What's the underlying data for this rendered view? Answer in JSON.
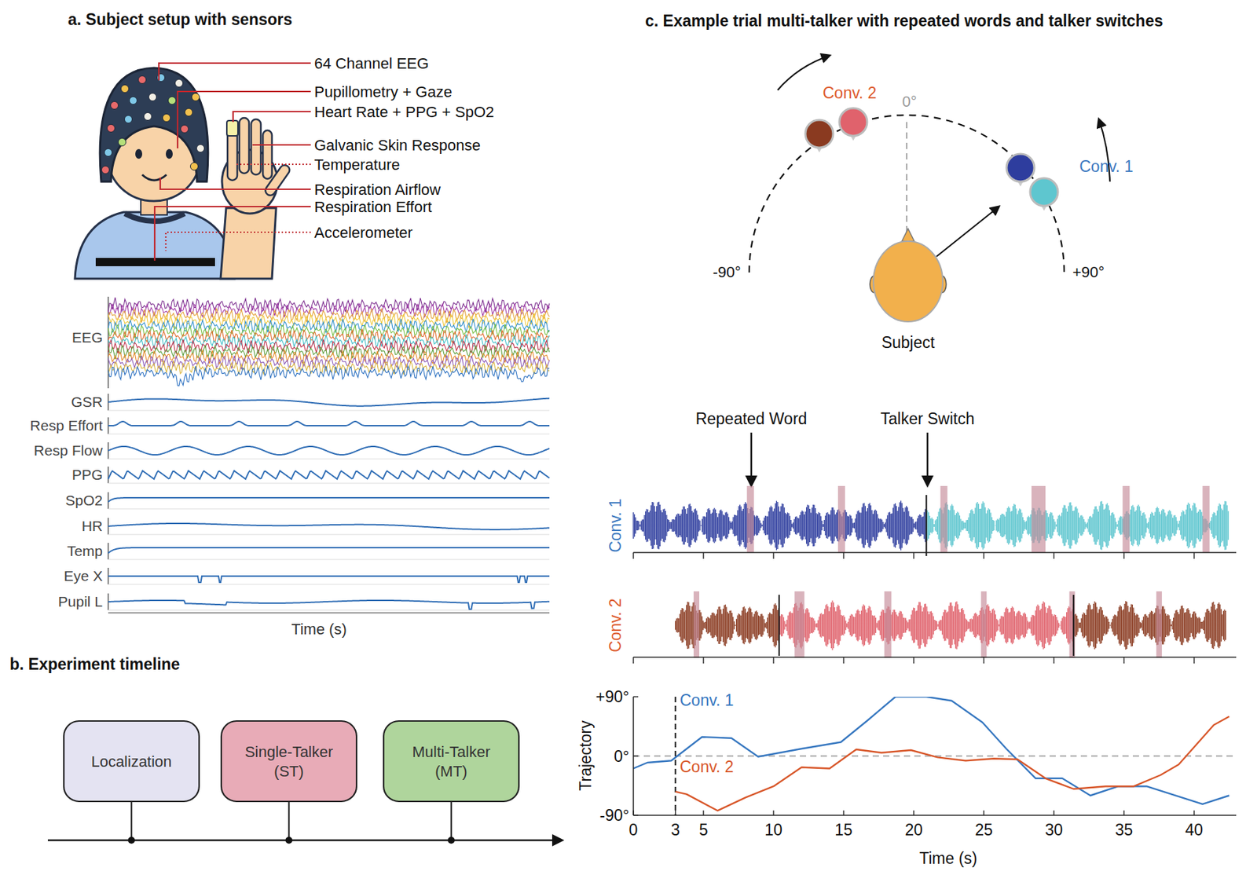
{
  "panel_a": {
    "title": "a. Subject setup with sensors",
    "sensors": [
      {
        "label": "64 Channel EEG",
        "line_style": "solid"
      },
      {
        "label": "Pupillometry + Gaze",
        "line_style": "solid"
      },
      {
        "label": "Heart Rate + PPG + SpO2",
        "line_style": "solid"
      },
      {
        "label": "Galvanic Skin Response",
        "line_style": "solid"
      },
      {
        "label": "Temperature",
        "line_style": "dotted"
      },
      {
        "label": "Respiration Airflow",
        "line_style": "solid"
      },
      {
        "label": "Respiration Effort",
        "line_style": "solid"
      },
      {
        "label": "Accelerometer",
        "line_style": "dotted"
      }
    ],
    "signals": [
      "EEG",
      "GSR",
      "Resp Effort",
      "Resp Flow",
      "PPG",
      "SpO2",
      "HR",
      "Temp",
      "Eye X",
      "Pupil L"
    ],
    "x_label": "Time (s)"
  },
  "panel_b": {
    "title": "b. Experiment timeline",
    "stages": [
      {
        "lines": [
          "Localization"
        ],
        "color": "#e4e3f2"
      },
      {
        "lines": [
          "Single-Talker",
          "(ST)"
        ],
        "color": "#e8abb7"
      },
      {
        "lines": [
          "Multi-Talker",
          "(MT)"
        ],
        "color": "#afd59c"
      }
    ]
  },
  "panel_c": {
    "title": "c. Example trial multi-talker with repeated words and talker switches",
    "scene": {
      "front_label": "0°",
      "left_label": "-90°",
      "right_label": "+90°",
      "subject_label": "Subject",
      "conversations": [
        {
          "name": "Conv. 1",
          "color": "#3b78c0",
          "talker_colors": [
            "#2e3d9e",
            "#5ec6cf"
          ]
        },
        {
          "name": "Conv. 2",
          "color": "#dd5a2c",
          "talker_colors": [
            "#8a3a20",
            "#e0626c"
          ]
        }
      ]
    },
    "annotations": {
      "repeated_word": "Repeated Word",
      "talker_switch": "Talker Switch"
    },
    "time_ticks": [
      0,
      5,
      10,
      15,
      20,
      25,
      30,
      35,
      40
    ],
    "audio": [
      {
        "name": "Conv. 1",
        "color": "#3b78c0",
        "segments": [
          {
            "start": 0,
            "end": 20.9,
            "color": "#2e3d9e"
          },
          {
            "start": 20.9,
            "end": 42.5,
            "color": "#5ec6cf"
          }
        ],
        "switches": [
          20.9
        ],
        "repeated_words": [
          [
            8.1,
            8.6
          ],
          [
            14.6,
            15.1
          ],
          [
            21.9,
            22.4
          ],
          [
            28.4,
            29.4
          ],
          [
            34.9,
            35.4
          ],
          [
            40.6,
            41.1
          ]
        ]
      },
      {
        "name": "Conv. 2",
        "color": "#dd5a2c",
        "segments": [
          {
            "start": 3,
            "end": 10.4,
            "color": "#8a3a20"
          },
          {
            "start": 10.4,
            "end": 31.4,
            "color": "#e0626c"
          },
          {
            "start": 31.4,
            "end": 42.3,
            "color": "#8a3a20"
          }
        ],
        "switches": [
          10.4,
          31.4
        ],
        "repeated_words": [
          [
            4.3,
            4.7
          ],
          [
            11.5,
            12.2
          ],
          [
            17.9,
            18.4
          ],
          [
            24.8,
            25.2
          ],
          [
            31.1,
            31.5
          ],
          [
            37.3,
            37.7
          ]
        ]
      }
    ]
  },
  "chart_data": {
    "type": "line",
    "x_label": "Time (s)",
    "y_label": "Trajectory",
    "xlim": [
      0,
      43
    ],
    "ylim": [
      -90,
      90
    ],
    "xticks": [
      0,
      3,
      5,
      10,
      15,
      20,
      25,
      30,
      35,
      40
    ],
    "yticks": [
      {
        "value": -90,
        "label": "-90°"
      },
      {
        "value": 0,
        "label": "0°"
      },
      {
        "value": 90,
        "label": "+90°"
      }
    ],
    "vlines": [
      {
        "x": 3,
        "line_style": "dashed"
      }
    ],
    "hlines": [
      {
        "y": 0,
        "line_style": "dashed",
        "color": "#aaaaaa"
      }
    ],
    "series": [
      {
        "name": "Conv. 1",
        "color": "#3677c0",
        "x": [
          0,
          1,
          2.7,
          4.9,
          7,
          8.9,
          12,
          14.8,
          16.7,
          18.7,
          20.9,
          22.7,
          24.9,
          26.6,
          28.7,
          30.6,
          32.6,
          34.6,
          36.6,
          40.6,
          42.5
        ],
        "values": [
          -19,
          -10,
          -7,
          29,
          27,
          -1,
          11,
          21,
          54,
          90,
          90,
          84,
          51,
          11,
          -34,
          -34,
          -60,
          -46,
          -46,
          -73,
          -60
        ]
      },
      {
        "name": "Conv. 2",
        "color": "#d8572a",
        "x": [
          3,
          3.8,
          6,
          8,
          10,
          12,
          14,
          15.9,
          17.7,
          19.8,
          21.7,
          23.7,
          25.7,
          27.4,
          29.4,
          31.4,
          33.7,
          35.7,
          37.6,
          38.9,
          41.4,
          42.5
        ],
        "values": [
          -54,
          -58,
          -83,
          -63,
          -46,
          -17,
          -19,
          10,
          5,
          9,
          -2,
          -7,
          -4,
          -5,
          -34,
          -50,
          -46,
          -46,
          -29,
          -13,
          47,
          60
        ]
      }
    ]
  }
}
